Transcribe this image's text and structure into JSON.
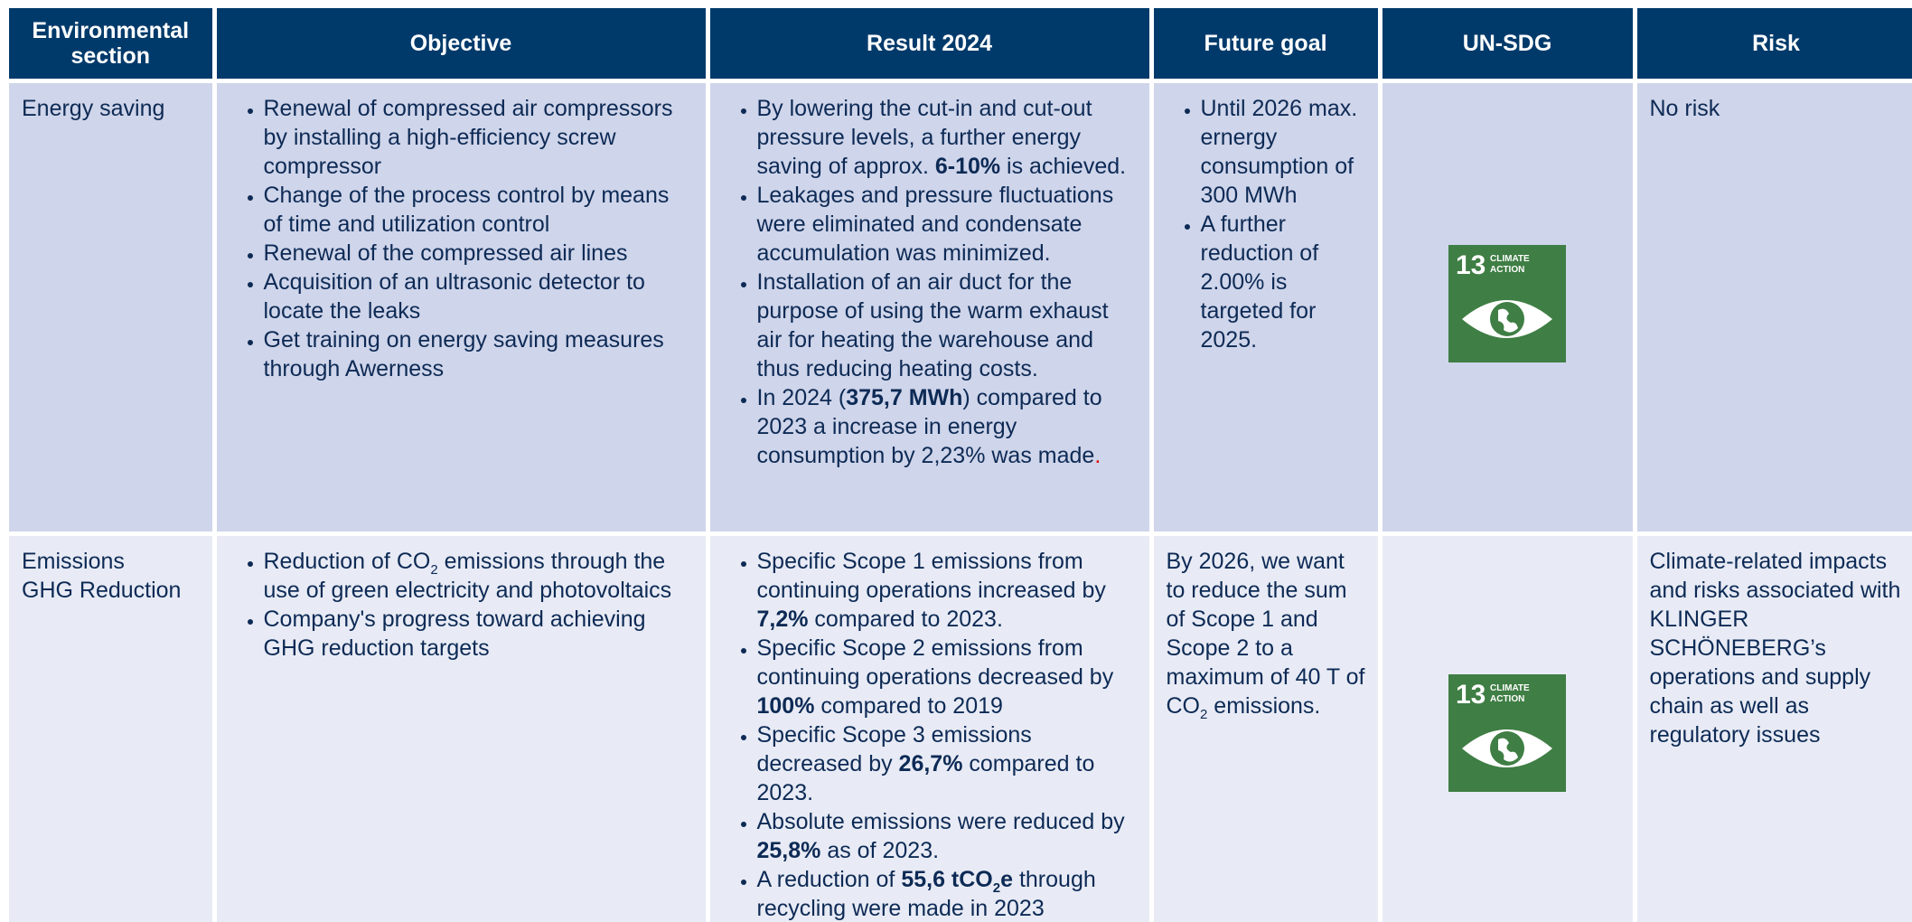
{
  "header": [
    "Environmental section",
    "Objective",
    "Result 2024",
    "Future goal",
    "UN-SDG",
    "Risk"
  ],
  "rows": [
    {
      "section": "Energy saving",
      "objective": [
        [
          {
            "text": "Renewal of compressed air compressors by installing a high-efficiency screw compressor"
          }
        ],
        [
          {
            "text": "Change of the process control by means of time and utilization control"
          }
        ],
        [
          {
            "text": "Renewal of the compressed air lines"
          }
        ],
        [
          {
            "text": "Acquisition of an ultrasonic detector to locate the leaks"
          }
        ],
        [
          {
            "text": "Get training on energy saving measures through Awerness"
          }
        ]
      ],
      "result": [
        [
          {
            "text": "By lowering the cut-in and cut-out pressure levels, a further energy saving of approx. "
          },
          {
            "text": "6-10%",
            "style": "bold"
          },
          {
            "text": " is achieved."
          }
        ],
        [
          {
            "text": "Leakages and pressure fluctuations were eliminated and condensate accumulation was minimized."
          }
        ],
        [
          {
            "text": "Installation of an air duct for the purpose of using the warm exhaust air for heating the warehouse and thus reducing heating costs."
          }
        ],
        [
          {
            "text": "In 2024 ("
          },
          {
            "text": "375,7 MWh",
            "style": "bold"
          },
          {
            "text": ") compared to 2023 a increase in energy consumption by 2,23% was made"
          },
          {
            "text": ".",
            "style": "red"
          }
        ]
      ],
      "future": {
        "bullets": [
          [
            {
              "text": "Until 2026 max. ernergy consumption of 300 MWh"
            }
          ],
          [
            {
              "text": "A further reduction of 2.00% is targeted for 2025."
            }
          ]
        ]
      },
      "sdg": {
        "number": "13",
        "line1": "CLIMATE",
        "line2": "ACTION"
      },
      "risk": "No risk"
    },
    {
      "section": "Emissions\nGHG Reduction",
      "objective": [
        [
          {
            "text": "Reduction of CO"
          },
          {
            "text": "2",
            "style": "sub"
          },
          {
            "text": " emissions through the use of green electricity and photovoltaics"
          }
        ],
        [
          {
            "text": "Company's progress toward achieving GHG reduction targets"
          }
        ]
      ],
      "result": [
        [
          {
            "text": "Specific Scope 1 emissions from continuing operations increased by "
          },
          {
            "text": "7,2%",
            "style": "bold"
          },
          {
            "text": " compared to 2023."
          }
        ],
        [
          {
            "text": "Specific Scope 2 emissions from continuing operations decreased by "
          },
          {
            "text": "100%",
            "style": "bold"
          },
          {
            "text": " compared to 2019"
          }
        ],
        [
          {
            "text": "Specific Scope 3 emissions decreased by "
          },
          {
            "text": "26,7%",
            "style": "bold"
          },
          {
            "text": " compared to 2023."
          }
        ],
        [
          {
            "text": "Absolute emissions were reduced by "
          },
          {
            "text": "25,8%",
            "style": "bold"
          },
          {
            "text": " as of 2023."
          }
        ],
        [
          {
            "text": "A reduction of "
          },
          {
            "text": "55,6 tCO",
            "style": "bold"
          },
          {
            "text": "2",
            "style": "bold-sub"
          },
          {
            "text": "e",
            "style": "bold"
          },
          {
            "text": " through recycling were made in 2023"
          }
        ]
      ],
      "future": {
        "paragraph": [
          {
            "text": "By 2026, we want to reduce the sum of Scope 1 and Scope 2 to a maximum of 40 T of CO"
          },
          {
            "text": "2",
            "style": "sub"
          },
          {
            "text": " emissions."
          }
        ]
      },
      "sdg": {
        "number": "13",
        "line1": "CLIMATE",
        "line2": "ACTION"
      },
      "risk": "Climate-related impacts and risks associated with KLINGER SCHÖNEBERG’s operations and supply chain as well as regulatory issues"
    }
  ]
}
